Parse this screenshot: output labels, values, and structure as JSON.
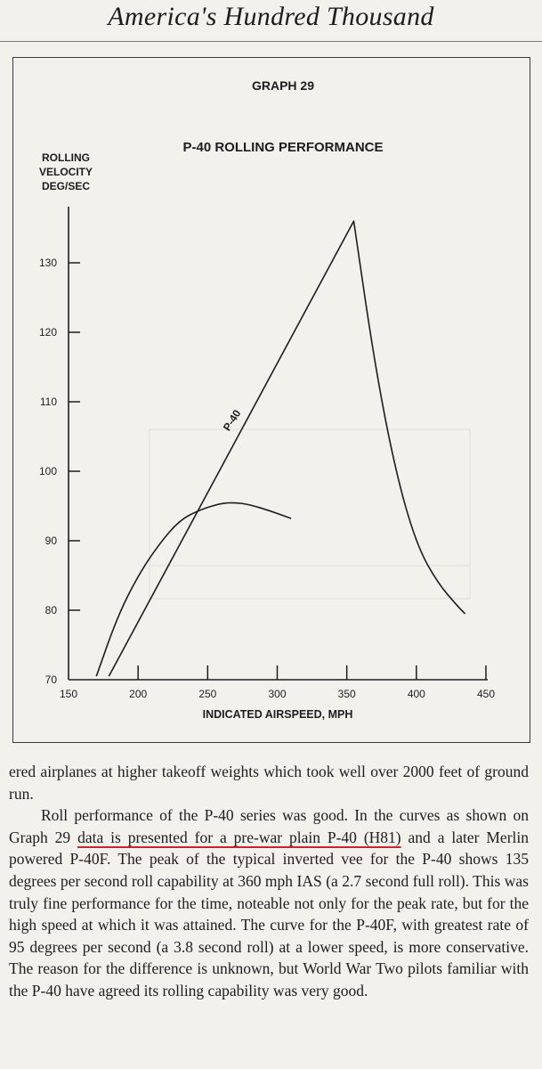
{
  "header": {
    "title": "America's Hundred Thousand"
  },
  "figure": {
    "graph_label": "GRAPH 29",
    "title": "P-40 ROLLING PERFORMANCE",
    "ylabel_lines": [
      "ROLLING",
      "VELOCITY",
      "DEG/SEC"
    ],
    "xlabel": "INDICATED AIRSPEED, MPH",
    "curve_label": "P-40"
  },
  "chart_data": {
    "type": "line",
    "title": "P-40 ROLLING PERFORMANCE",
    "xlabel": "INDICATED AIRSPEED, MPH",
    "ylabel": "ROLLING VELOCITY DEG/SEC",
    "xlim": [
      150,
      450
    ],
    "ylim": [
      70,
      137
    ],
    "x_ticks": [
      150,
      200,
      250,
      300,
      350,
      400,
      450
    ],
    "y_ticks": [
      70,
      80,
      90,
      100,
      110,
      120,
      130
    ],
    "grid": false,
    "series": [
      {
        "name": "P-40",
        "x": [
          179,
          355,
          370,
          385,
          400,
          415,
          430,
          435
        ],
        "y": [
          70.5,
          136,
          115.5,
          100,
          89.5,
          84,
          80.5,
          79.5
        ]
      },
      {
        "name": "",
        "x": [
          170,
          185,
          200,
          215,
          230,
          245,
          260,
          270,
          280,
          295,
          310
        ],
        "y": [
          70.5,
          79,
          85,
          89.5,
          93,
          94.5,
          95.4,
          95.5,
          95.2,
          94.3,
          93.2
        ]
      }
    ]
  },
  "body": {
    "p1": "ered airplanes at higher takeoff weights which took well over 2000 feet of ground run.",
    "p2_a": "Roll performance of the P-40 series was good. In the curves as shown on Graph 29 ",
    "p2_underlined": "data is presented for a pre-war plain P-40 (H81)",
    "p2_b": " and a later Merlin powered P-40F. The peak of the typical inverted vee for the P-40 shows 135 degrees per second roll capability at 360 mph IAS (a 2.7 second full roll). This was truly fine performance for the time, noteable not only for the peak rate, but for the high speed at which it was attained. The curve for the P-40F, with greatest rate of 95 degrees per second (a 3.8 second roll) at a lower speed, is more conservative. The reason for the difference is unknown, but World War Two pilots familiar with the P-40 have agreed its rolling capability was very good."
  },
  "colors": {
    "paper": "#f3f1ec",
    "ink": "#1d1d1d",
    "underline": "#c9242b"
  }
}
